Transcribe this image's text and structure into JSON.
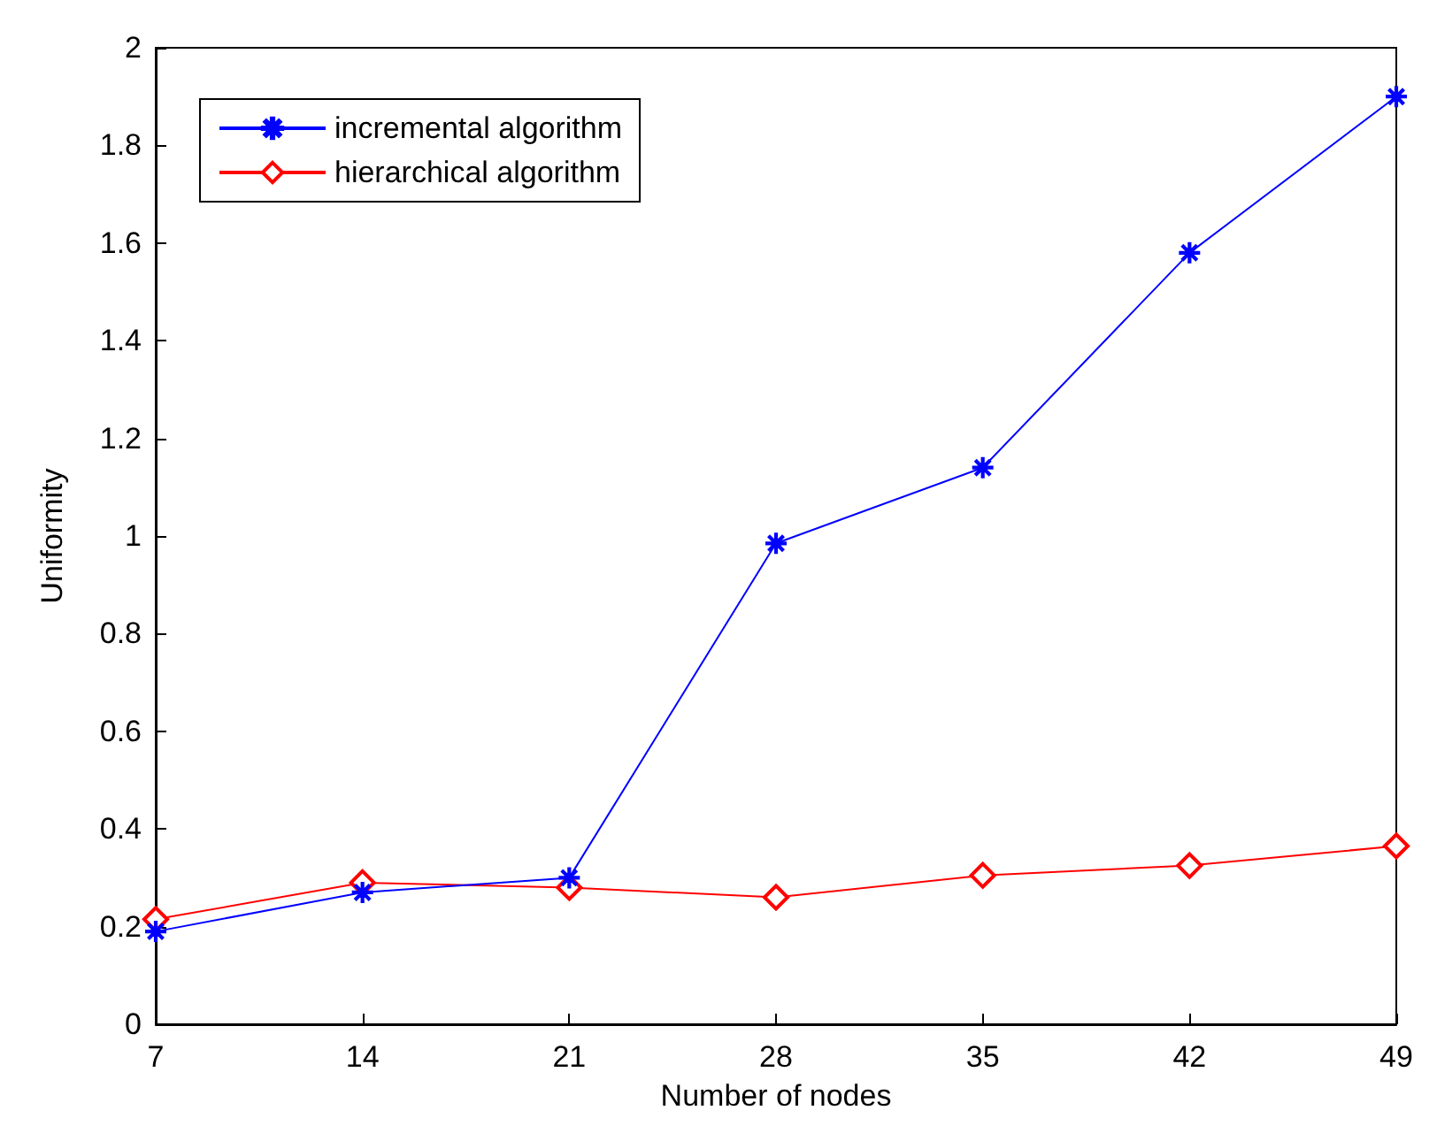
{
  "chart_data": {
    "type": "line",
    "xlabel": "Number of nodes",
    "ylabel": "Uniformity",
    "x": [
      7,
      14,
      21,
      28,
      35,
      42,
      49
    ],
    "series": [
      {
        "name": "incremental algorithm",
        "color": "#0000ff",
        "marker": "star",
        "values": [
          0.19,
          0.27,
          0.3,
          0.985,
          1.14,
          1.58,
          1.9
        ]
      },
      {
        "name": "hierarchical algorithm",
        "color": "#ff0000",
        "marker": "diamond",
        "values": [
          0.215,
          0.29,
          0.28,
          0.26,
          0.305,
          0.325,
          0.365
        ]
      }
    ],
    "xlim": [
      7,
      49
    ],
    "xticks": [
      7,
      14,
      21,
      28,
      35,
      42,
      49
    ],
    "ylim": [
      0,
      2
    ],
    "yticks": [
      0,
      0.2,
      0.4,
      0.6,
      0.8,
      1,
      1.2,
      1.4,
      1.6,
      1.8,
      2
    ],
    "grid": false,
    "legend": "top left",
    "line_style": "solid"
  }
}
